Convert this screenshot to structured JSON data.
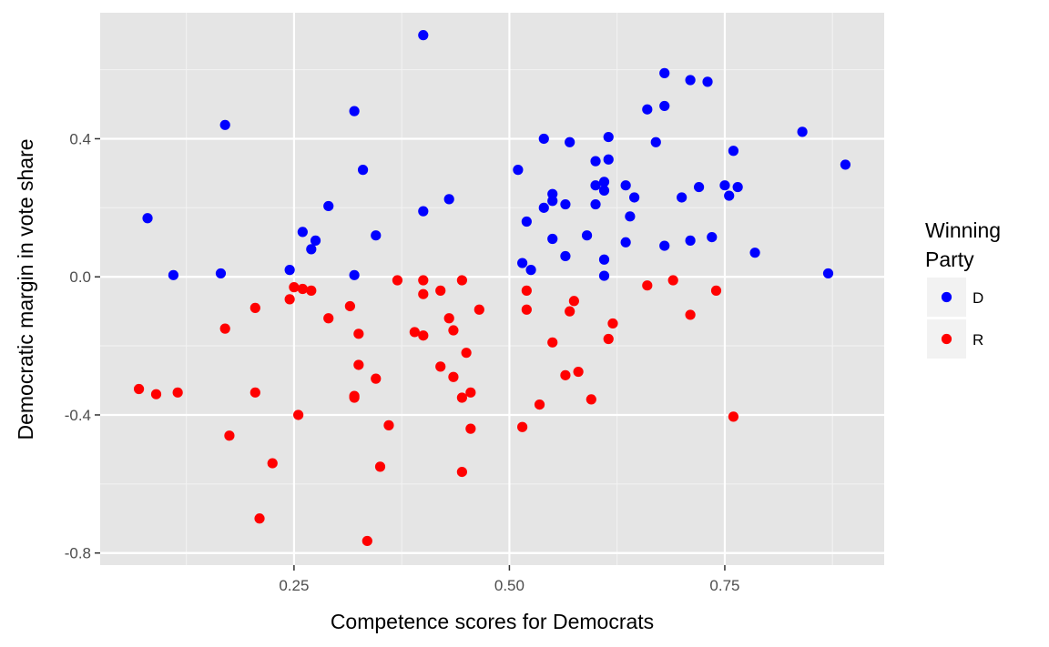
{
  "chart_data": {
    "type": "scatter",
    "title": "",
    "xlabel": "Competence scores for Democrats",
    "ylabel": "Democratic margin in vote share",
    "xlim": [
      0.025,
      0.935
    ],
    "ylim": [
      -0.835,
      0.765
    ],
    "x_ticks": [
      0.25,
      0.5,
      0.75
    ],
    "x_tick_labels": [
      "0.25",
      "0.50",
      "0.75"
    ],
    "y_ticks": [
      -0.8,
      -0.4,
      0.0,
      0.4
    ],
    "y_tick_labels": [
      "-0.8",
      "-0.4",
      "0.0",
      "0.4"
    ],
    "grid": true,
    "legend": {
      "title_lines": [
        "Winning",
        "Party"
      ],
      "placement": "right",
      "entries": [
        {
          "label": "D",
          "color": "#0000ff"
        },
        {
          "label": "R",
          "color": "#ff0000"
        }
      ]
    },
    "series": [
      {
        "name": "D",
        "color": "#0000ff",
        "points": [
          [
            0.4,
            0.7
          ],
          [
            0.68,
            0.59
          ],
          [
            0.71,
            0.57
          ],
          [
            0.73,
            0.565
          ],
          [
            0.68,
            0.495
          ],
          [
            0.66,
            0.485
          ],
          [
            0.32,
            0.48
          ],
          [
            0.17,
            0.44
          ],
          [
            0.84,
            0.42
          ],
          [
            0.615,
            0.405
          ],
          [
            0.54,
            0.4
          ],
          [
            0.57,
            0.39
          ],
          [
            0.67,
            0.39
          ],
          [
            0.76,
            0.365
          ],
          [
            0.615,
            0.34
          ],
          [
            0.6,
            0.335
          ],
          [
            0.89,
            0.325
          ],
          [
            0.33,
            0.31
          ],
          [
            0.51,
            0.31
          ],
          [
            0.61,
            0.275
          ],
          [
            0.6,
            0.265
          ],
          [
            0.635,
            0.265
          ],
          [
            0.75,
            0.265
          ],
          [
            0.72,
            0.26
          ],
          [
            0.765,
            0.26
          ],
          [
            0.61,
            0.25
          ],
          [
            0.55,
            0.24
          ],
          [
            0.755,
            0.235
          ],
          [
            0.645,
            0.23
          ],
          [
            0.7,
            0.23
          ],
          [
            0.43,
            0.225
          ],
          [
            0.55,
            0.22
          ],
          [
            0.565,
            0.21
          ],
          [
            0.6,
            0.21
          ],
          [
            0.29,
            0.205
          ],
          [
            0.54,
            0.2
          ],
          [
            0.4,
            0.19
          ],
          [
            0.08,
            0.17
          ],
          [
            0.64,
            0.175
          ],
          [
            0.52,
            0.16
          ],
          [
            0.26,
            0.13
          ],
          [
            0.345,
            0.12
          ],
          [
            0.59,
            0.12
          ],
          [
            0.735,
            0.115
          ],
          [
            0.55,
            0.11
          ],
          [
            0.275,
            0.105
          ],
          [
            0.71,
            0.105
          ],
          [
            0.635,
            0.1
          ],
          [
            0.68,
            0.09
          ],
          [
            0.27,
            0.08
          ],
          [
            0.785,
            0.07
          ],
          [
            0.565,
            0.06
          ],
          [
            0.61,
            0.05
          ],
          [
            0.515,
            0.04
          ],
          [
            0.525,
            0.02
          ],
          [
            0.245,
            0.02
          ],
          [
            0.87,
            0.01
          ],
          [
            0.165,
            0.01
          ],
          [
            0.11,
            0.005
          ],
          [
            0.32,
            0.005
          ],
          [
            0.61,
            0.003
          ]
        ]
      },
      {
        "name": "R",
        "color": "#ff0000",
        "points": [
          [
            0.37,
            -0.01
          ],
          [
            0.4,
            -0.01
          ],
          [
            0.445,
            -0.01
          ],
          [
            0.69,
            -0.01
          ],
          [
            0.66,
            -0.025
          ],
          [
            0.25,
            -0.03
          ],
          [
            0.26,
            -0.035
          ],
          [
            0.27,
            -0.04
          ],
          [
            0.52,
            -0.04
          ],
          [
            0.42,
            -0.04
          ],
          [
            0.4,
            -0.05
          ],
          [
            0.74,
            -0.04
          ],
          [
            0.245,
            -0.065
          ],
          [
            0.575,
            -0.07
          ],
          [
            0.315,
            -0.085
          ],
          [
            0.205,
            -0.09
          ],
          [
            0.465,
            -0.095
          ],
          [
            0.52,
            -0.095
          ],
          [
            0.57,
            -0.1
          ],
          [
            0.71,
            -0.11
          ],
          [
            0.43,
            -0.12
          ],
          [
            0.29,
            -0.12
          ],
          [
            0.62,
            -0.135
          ],
          [
            0.17,
            -0.15
          ],
          [
            0.39,
            -0.16
          ],
          [
            0.435,
            -0.155
          ],
          [
            0.325,
            -0.165
          ],
          [
            0.4,
            -0.17
          ],
          [
            0.615,
            -0.18
          ],
          [
            0.55,
            -0.19
          ],
          [
            0.45,
            -0.22
          ],
          [
            0.325,
            -0.255
          ],
          [
            0.42,
            -0.26
          ],
          [
            0.58,
            -0.275
          ],
          [
            0.565,
            -0.285
          ],
          [
            0.345,
            -0.295
          ],
          [
            0.435,
            -0.29
          ],
          [
            0.07,
            -0.325
          ],
          [
            0.09,
            -0.34
          ],
          [
            0.115,
            -0.335
          ],
          [
            0.205,
            -0.335
          ],
          [
            0.32,
            -0.345
          ],
          [
            0.32,
            -0.35
          ],
          [
            0.445,
            -0.35
          ],
          [
            0.455,
            -0.335
          ],
          [
            0.595,
            -0.355
          ],
          [
            0.535,
            -0.37
          ],
          [
            0.255,
            -0.4
          ],
          [
            0.76,
            -0.405
          ],
          [
            0.36,
            -0.43
          ],
          [
            0.515,
            -0.435
          ],
          [
            0.455,
            -0.44
          ],
          [
            0.175,
            -0.46
          ],
          [
            0.225,
            -0.54
          ],
          [
            0.35,
            -0.55
          ],
          [
            0.445,
            -0.565
          ],
          [
            0.21,
            -0.7
          ],
          [
            0.335,
            -0.765
          ]
        ]
      }
    ]
  }
}
